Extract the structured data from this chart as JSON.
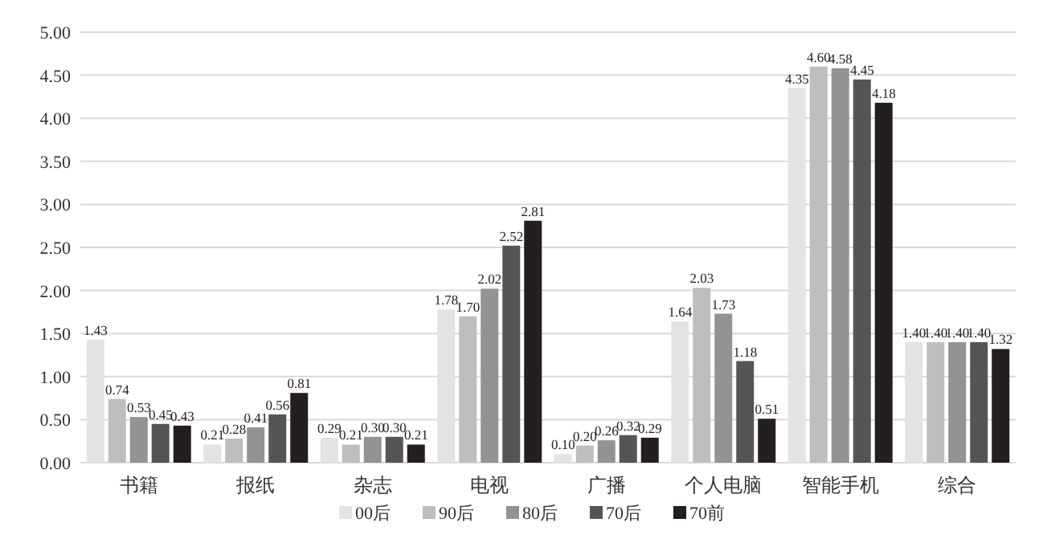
{
  "chart_data": {
    "type": "bar",
    "categories": [
      "书籍",
      "报纸",
      "杂志",
      "电视",
      "广播",
      "个人电脑",
      "智能手机",
      "综合"
    ],
    "series": [
      {
        "name": "00后",
        "color": "#e3e3e3",
        "values": [
          1.43,
          0.21,
          0.29,
          1.78,
          0.1,
          1.64,
          4.35,
          1.4
        ],
        "value_labels": [
          "1.43",
          "0.21",
          "0.29",
          "1.78",
          "0.10",
          "1.64",
          "4.35",
          "1.40"
        ]
      },
      {
        "name": "90后",
        "color": "#bebebe",
        "values": [
          0.74,
          0.28,
          0.21,
          1.7,
          0.2,
          2.03,
          4.6,
          1.4
        ],
        "value_labels": [
          "0.74",
          "0.28",
          "0.21",
          "1.70",
          "0.20",
          "2.03",
          "4.60",
          "1.40"
        ]
      },
      {
        "name": "80后",
        "color": "#939393",
        "values": [
          0.53,
          0.41,
          0.3,
          2.02,
          0.26,
          1.73,
          4.58,
          1.4
        ],
        "value_labels": [
          "0.53",
          "0.41",
          "0.30",
          "2.02",
          "0.26",
          "1.73",
          "4.58",
          "1.40"
        ]
      },
      {
        "name": "70后",
        "color": "#555555",
        "values": [
          0.45,
          0.56,
          0.3,
          2.52,
          0.32,
          1.18,
          4.45,
          1.4
        ],
        "value_labels": [
          "0.45",
          "0.56",
          "0.30",
          "2.52",
          "0.32",
          "1.18",
          "4.45",
          "1.40"
        ]
      },
      {
        "name": "70前",
        "color": "#231f20",
        "values": [
          0.43,
          0.81,
          0.21,
          2.81,
          0.29,
          0.51,
          4.18,
          1.32
        ],
        "value_labels": [
          "0.43",
          "0.81",
          "0.21",
          "2.81",
          "0.29",
          "0.51",
          "4.18",
          "1.32"
        ]
      }
    ],
    "ylim": [
      0,
      5
    ],
    "yticks": [
      {
        "value": 0,
        "label": "0.00"
      },
      {
        "value": 0.5,
        "label": "0.50"
      },
      {
        "value": 1,
        "label": "1.00"
      },
      {
        "value": 1.5,
        "label": "1.50"
      },
      {
        "value": 2,
        "label": "2.00"
      },
      {
        "value": 2.5,
        "label": "2.50"
      },
      {
        "value": 3,
        "label": "3.00"
      },
      {
        "value": 3.5,
        "label": "3.50"
      },
      {
        "value": 4,
        "label": "4.00"
      },
      {
        "value": 4.5,
        "label": "4.50"
      },
      {
        "value": 5,
        "label": "5.00"
      }
    ],
    "grid": "y",
    "legend": "bottom"
  }
}
